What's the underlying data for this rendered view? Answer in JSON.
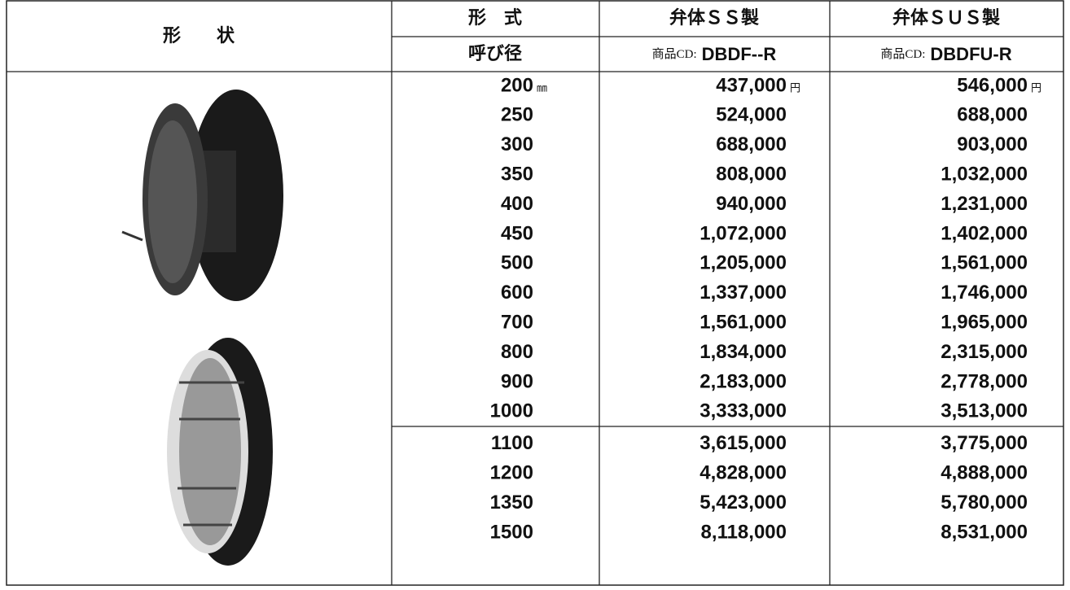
{
  "header": {
    "shape": "形　　状",
    "type": "形　式",
    "size": "呼び径",
    "columns": [
      {
        "name": "弁体ＳＳ製",
        "code_prefix": "商品CD:",
        "code": "DBDF--R"
      },
      {
        "name": "弁体ＳＵＳ製",
        "code_prefix": "商品CD:",
        "code": "DBDFU-R"
      }
    ]
  },
  "units": {
    "size": "㎜",
    "price": "円"
  },
  "table": {
    "rows": [
      [
        "200",
        "437,000",
        "546,000"
      ],
      [
        "250",
        "524,000",
        "688,000"
      ],
      [
        "300",
        "688,000",
        "903,000"
      ],
      [
        "350",
        "808,000",
        "1,032,000"
      ],
      [
        "400",
        "940,000",
        "1,231,000"
      ],
      [
        "450",
        "1,072,000",
        "1,402,000"
      ],
      [
        "500",
        "1,205,000",
        "1,561,000"
      ],
      [
        "600",
        "1,337,000",
        "1,746,000"
      ],
      [
        "700",
        "1,561,000",
        "1,965,000"
      ],
      [
        "800",
        "1,834,000",
        "2,315,000"
      ],
      [
        "900",
        "2,183,000",
        "2,778,000"
      ],
      [
        "1000",
        "3,333,000",
        "3,513,000"
      ],
      [
        "1100",
        "3,615,000",
        "3,775,000"
      ],
      [
        "1200",
        "4,828,000",
        "4,888,000"
      ],
      [
        "1350",
        "5,423,000",
        "5,780,000"
      ],
      [
        "1500",
        "8,118,000",
        "8,531,000"
      ]
    ]
  }
}
